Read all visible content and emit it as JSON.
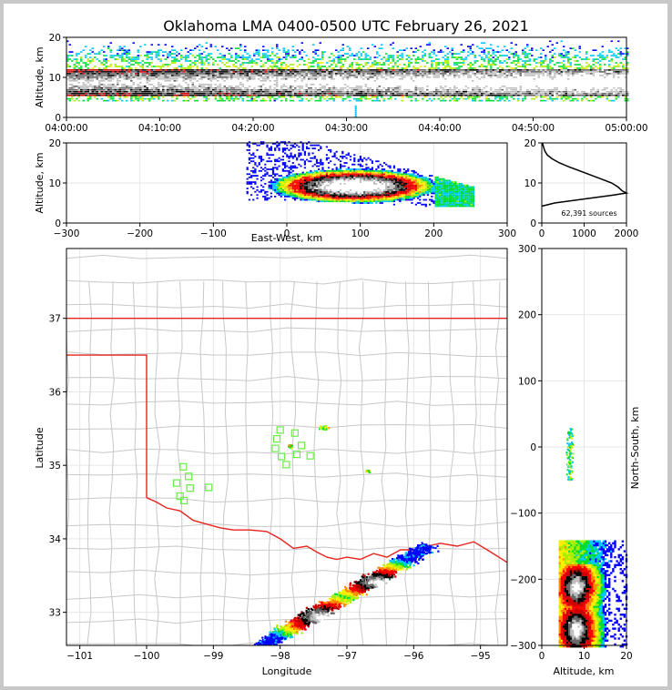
{
  "title": "Oklahoma LMA 0400-0500 UTC February 26, 2021",
  "colors": {
    "frame": "#c8c8c8",
    "state_border": "#e8231e",
    "county_lines": "#c8c8c8",
    "stations": "#66ee44",
    "density_scale": [
      "#0000ff",
      "#00c8ff",
      "#00dd33",
      "#aaee00",
      "#ffee00",
      "#ff8800",
      "#ff0000",
      "#cc0000",
      "#000000",
      "#666666",
      "#c0c0c0",
      "#ffffff"
    ]
  },
  "chart_data": [
    {
      "id": "time_height",
      "type": "heatmap",
      "ylabel": "Altitude, km",
      "xlabel": "",
      "x_ticks": [
        "04:00:00",
        "04:10:00",
        "04:20:00",
        "04:30:00",
        "04:40:00",
        "04:50:00",
        "05:00:00"
      ],
      "xlim_minutes": [
        0,
        60
      ],
      "ylim": [
        0,
        20
      ],
      "y_ticks": [
        0,
        10,
        20
      ],
      "densest_altitude_km": [
        5,
        12
      ],
      "sparse_extent_km": [
        4,
        20
      ]
    },
    {
      "id": "ew_altitude",
      "type": "heatmap",
      "xlabel": "East-West, km",
      "ylabel": "Altitude, km",
      "xlim": [
        -300,
        300
      ],
      "x_ticks": [
        -300,
        -200,
        -100,
        0,
        100,
        200,
        300
      ],
      "ylim": [
        0,
        20
      ],
      "y_ticks": [
        0,
        10,
        20
      ],
      "cloud_extent_x_km": [
        -55,
        255
      ],
      "cloud_core_x_km": [
        40,
        140
      ],
      "cloud_core_alt_km": [
        6,
        12
      ]
    },
    {
      "id": "altitude_histogram",
      "type": "line",
      "xlim": [
        0,
        2000
      ],
      "x_ticks": [
        0,
        1000,
        2000
      ],
      "ylim": [
        0,
        20
      ],
      "y_ticks": [
        0,
        10,
        20
      ],
      "annotation": "62,391 sources",
      "altitude_km": [
        4.2,
        5,
        6,
        7,
        7.5,
        8,
        9,
        10,
        11,
        12,
        13,
        14,
        15,
        16,
        17,
        18,
        19,
        20
      ],
      "sources": [
        0,
        300,
        1000,
        1700,
        2000,
        1900,
        1800,
        1650,
        1400,
        1150,
        900,
        650,
        420,
        250,
        130,
        70,
        40,
        15
      ]
    },
    {
      "id": "plan_view",
      "type": "scatter",
      "xlabel": "Longitude",
      "ylabel": "Latitude",
      "xlim": [
        -101.2,
        -94.6
      ],
      "ylim": [
        32.55,
        37.95
      ],
      "x_ticks": [
        -101,
        -100,
        -99,
        -98,
        -97,
        -96,
        -95
      ],
      "y_ticks": [
        33,
        34,
        35,
        36,
        37
      ],
      "stations": [
        {
          "lon": -99.45,
          "lat": 34.98
        },
        {
          "lon": -99.37,
          "lat": 34.85
        },
        {
          "lon": -99.55,
          "lat": 34.76
        },
        {
          "lon": -99.35,
          "lat": 34.69
        },
        {
          "lon": -99.5,
          "lat": 34.58
        },
        {
          "lon": -99.44,
          "lat": 34.52
        },
        {
          "lon": -99.07,
          "lat": 34.7
        },
        {
          "lon": -98.0,
          "lat": 35.48
        },
        {
          "lon": -98.05,
          "lat": 35.36
        },
        {
          "lon": -98.07,
          "lat": 35.23
        },
        {
          "lon": -97.98,
          "lat": 35.12
        },
        {
          "lon": -97.91,
          "lat": 35.01
        },
        {
          "lon": -97.78,
          "lat": 35.44
        },
        {
          "lon": -97.75,
          "lat": 35.15
        },
        {
          "lon": -97.68,
          "lat": 35.27
        },
        {
          "lon": -97.55,
          "lat": 35.13
        }
      ],
      "storm_axis_start": [
        -98.3,
        32.55
      ],
      "storm_axis_end": [
        -95.8,
        33.9
      ]
    },
    {
      "id": "ns_altitude",
      "type": "heatmap",
      "xlabel": "Altitude, km",
      "ylabel": "North-South, km",
      "xlim": [
        0,
        20
      ],
      "x_ticks": [
        0,
        10,
        20
      ],
      "ylim": [
        -300,
        300
      ],
      "y_ticks": [
        -300,
        -200,
        -100,
        0,
        100,
        200,
        300
      ],
      "cluster_top_ns_km": [
        -50,
        30
      ],
      "cluster_bottom_ns_km": [
        -300,
        -140
      ]
    }
  ]
}
